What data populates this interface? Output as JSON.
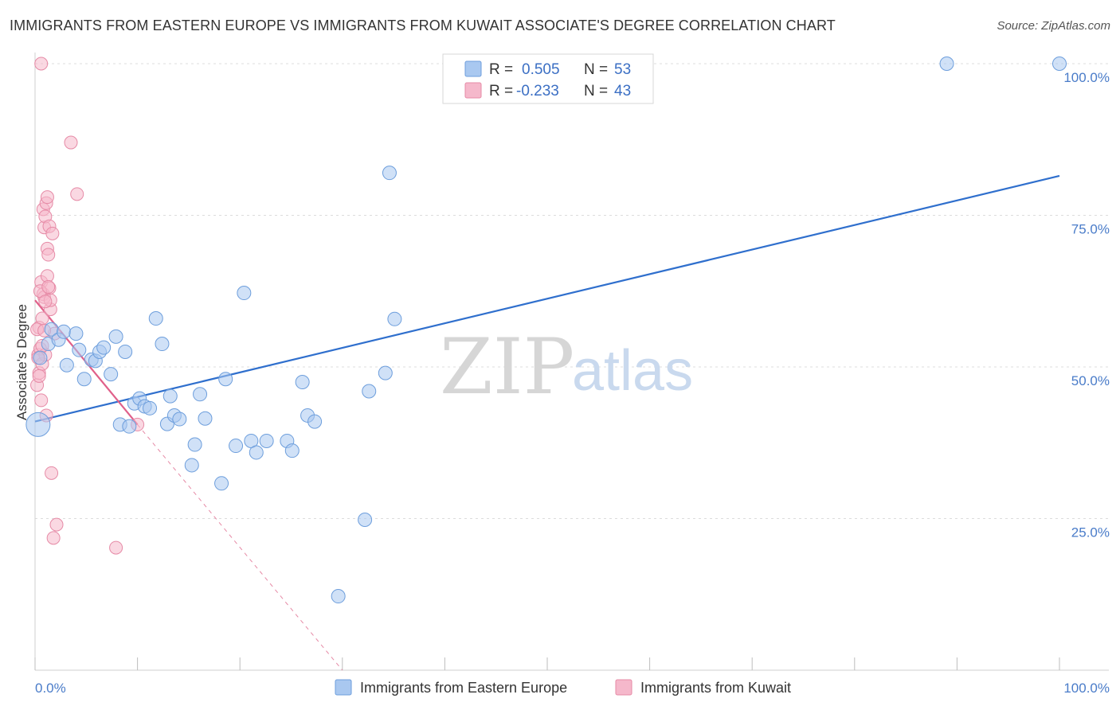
{
  "title": "IMMIGRANTS FROM EASTERN EUROPE VS IMMIGRANTS FROM KUWAIT ASSOCIATE'S DEGREE CORRELATION CHART",
  "source": "Source: ZipAtlas.com",
  "watermark": {
    "zip": "ZIP",
    "atlas": "atlas"
  },
  "legend": {
    "rows": [
      {
        "r_label": "R =",
        "r_value": "0.505",
        "n_label": "N =",
        "n_value": "53",
        "color": "#a9c8f0"
      },
      {
        "r_label": "R =",
        "r_value": "-0.233",
        "n_label": "N =",
        "n_value": "43",
        "color": "#f5b8cb"
      }
    ]
  },
  "colors": {
    "blue_fill": "#a9c8f0",
    "blue_stroke": "#6d9edc",
    "blue_line": "#2f6fcd",
    "pink_fill": "#f5b8cb",
    "pink_stroke": "#e68aa6",
    "pink_line": "#e0608a",
    "grid": "#dcdcdc",
    "tick_text": "#4a7cc9"
  },
  "chart_data": {
    "type": "scatter",
    "title": "IMMIGRANTS FROM EASTERN EUROPE VS IMMIGRANTS FROM KUWAIT ASSOCIATE'S DEGREE CORRELATION CHART",
    "xlabel": "",
    "ylabel": "Associate's Degree",
    "xlim": [
      0,
      100
    ],
    "ylim": [
      0,
      100
    ],
    "x_ticks": [
      "0.0%",
      "100.0%"
    ],
    "y_ticks": [
      {
        "value": 25,
        "label": "25.0%"
      },
      {
        "value": 50,
        "label": "50.0%"
      },
      {
        "value": 75,
        "label": "75.0%"
      },
      {
        "value": 100,
        "label": "100.0%"
      }
    ],
    "grid": "horizontal dashed",
    "legend_position": "top-center",
    "series": [
      {
        "name": "Immigrants from Eastern Europe",
        "color": "#a9c8f0",
        "points": [
          [
            0.3,
            40.5
          ],
          [
            0.5,
            51.5
          ],
          [
            1.3,
            53.8
          ],
          [
            1.6,
            56.2
          ],
          [
            2.3,
            54.5
          ],
          [
            2.8,
            55.8
          ],
          [
            3.1,
            50.3
          ],
          [
            4.0,
            55.5
          ],
          [
            4.3,
            52.8
          ],
          [
            4.8,
            48.0
          ],
          [
            5.5,
            51.2
          ],
          [
            5.9,
            51.0
          ],
          [
            6.3,
            52.5
          ],
          [
            6.7,
            53.2
          ],
          [
            7.4,
            48.8
          ],
          [
            7.9,
            55.0
          ],
          [
            8.3,
            40.5
          ],
          [
            8.8,
            52.5
          ],
          [
            9.2,
            40.2
          ],
          [
            9.7,
            44.0
          ],
          [
            10.2,
            44.8
          ],
          [
            10.7,
            43.5
          ],
          [
            11.2,
            43.2
          ],
          [
            11.8,
            58.0
          ],
          [
            12.4,
            53.8
          ],
          [
            12.9,
            40.6
          ],
          [
            13.2,
            45.2
          ],
          [
            13.6,
            42.0
          ],
          [
            14.1,
            41.4
          ],
          [
            15.6,
            37.2
          ],
          [
            16.1,
            45.5
          ],
          [
            16.6,
            41.5
          ],
          [
            15.3,
            33.8
          ],
          [
            18.6,
            48.0
          ],
          [
            18.2,
            30.8
          ],
          [
            19.6,
            37.0
          ],
          [
            20.4,
            62.2
          ],
          [
            21.1,
            37.8
          ],
          [
            21.6,
            35.9
          ],
          [
            22.6,
            37.8
          ],
          [
            24.6,
            37.8
          ],
          [
            25.1,
            36.2
          ],
          [
            26.1,
            47.5
          ],
          [
            26.6,
            42.0
          ],
          [
            27.3,
            41.0
          ],
          [
            29.6,
            12.2
          ],
          [
            32.2,
            24.8
          ],
          [
            32.6,
            46.0
          ],
          [
            34.2,
            49.0
          ],
          [
            34.6,
            82.0
          ],
          [
            35.1,
            57.9
          ],
          [
            89.0,
            100.0
          ],
          [
            100.0,
            100.0
          ]
        ],
        "trend": {
          "x": [
            0,
            100
          ],
          "y": [
            41.0,
            81.5
          ]
        }
      },
      {
        "name": "Immigrants from Kuwait",
        "color": "#f5b8cb",
        "points": [
          [
            0.2,
            47.0
          ],
          [
            0.3,
            52.0
          ],
          [
            0.4,
            49.0
          ],
          [
            0.4,
            56.5
          ],
          [
            0.5,
            53.0
          ],
          [
            0.6,
            44.5
          ],
          [
            0.6,
            64.0
          ],
          [
            0.7,
            58.0
          ],
          [
            0.7,
            50.5
          ],
          [
            0.8,
            62.0
          ],
          [
            0.8,
            76.0
          ],
          [
            0.9,
            73.0
          ],
          [
            0.9,
            61.5
          ],
          [
            1.0,
            74.8
          ],
          [
            1.0,
            52.0
          ],
          [
            1.1,
            77.0
          ],
          [
            1.1,
            42.0
          ],
          [
            1.2,
            69.5
          ],
          [
            1.2,
            65.0
          ],
          [
            1.2,
            78.0
          ],
          [
            1.3,
            68.5
          ],
          [
            1.4,
            63.0
          ],
          [
            1.4,
            73.2
          ],
          [
            1.5,
            59.5
          ],
          [
            1.5,
            61.0
          ],
          [
            1.6,
            32.5
          ],
          [
            1.7,
            72.0
          ],
          [
            1.8,
            21.8
          ],
          [
            1.9,
            55.5
          ],
          [
            2.1,
            24.0
          ],
          [
            0.6,
            100.0
          ],
          [
            3.5,
            87.0
          ],
          [
            4.1,
            78.5
          ],
          [
            7.9,
            20.2
          ],
          [
            10.0,
            40.5
          ],
          [
            0.2,
            56.2
          ],
          [
            0.3,
            51.5
          ],
          [
            0.4,
            48.5
          ],
          [
            0.5,
            62.5
          ],
          [
            0.9,
            56.0
          ],
          [
            1.0,
            60.8
          ],
          [
            1.3,
            63.2
          ],
          [
            0.7,
            53.5
          ]
        ],
        "trend": {
          "x": [
            0,
            10
          ],
          "y": [
            61.0,
            40.5
          ]
        },
        "trend_extension": {
          "x": [
            10,
            30
          ],
          "y": [
            40.5,
            0
          ]
        }
      }
    ]
  },
  "bottom_legend": [
    {
      "label": "Immigrants from Eastern Europe",
      "color": "#a9c8f0"
    },
    {
      "label": "Immigrants from Kuwait",
      "color": "#f5b8cb"
    }
  ]
}
